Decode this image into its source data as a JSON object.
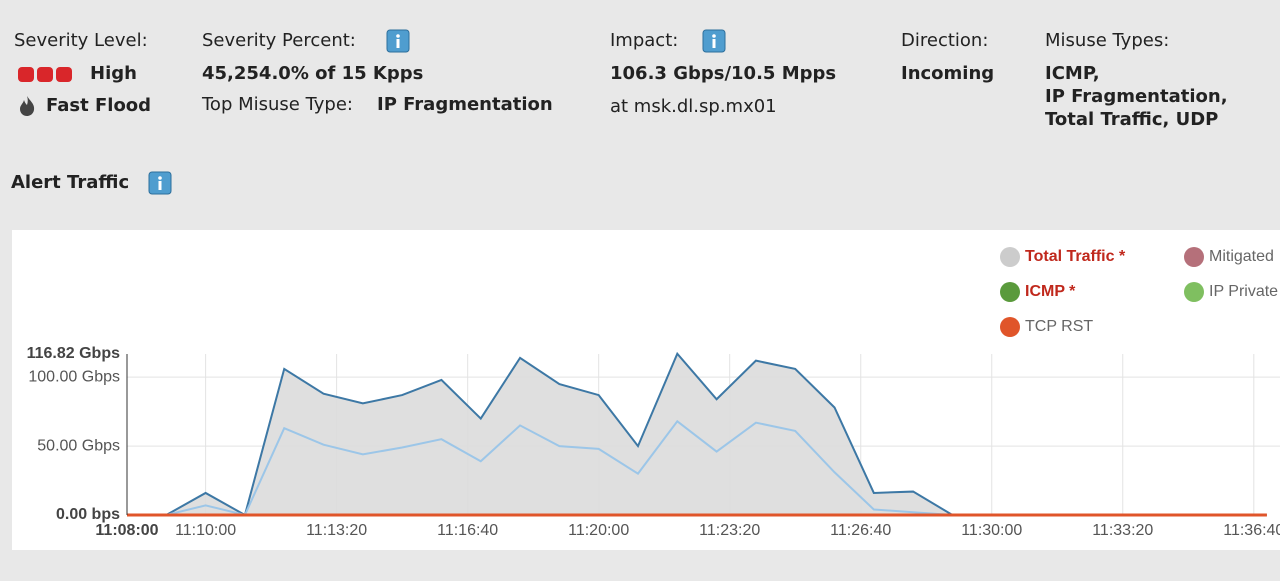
{
  "header": {
    "severity": {
      "label": "Severity Level:",
      "level": "High",
      "type": "Fast Flood"
    },
    "severity_percent": {
      "label": "Severity Percent:",
      "value": "45,254.0% of 15 Kpps",
      "top_misuse_label": "Top Misuse Type:",
      "top_misuse": "IP Fragmentation"
    },
    "impact": {
      "label": "Impact:",
      "value": "106.3 Gbps/10.5 Mpps",
      "location": "at msk.dl.sp.mx01"
    },
    "direction": {
      "label": "Direction:",
      "value": "Incoming"
    },
    "misuse_types": {
      "label": "Misuse Types:",
      "lines": [
        "ICMP,",
        "IP Fragmentation,",
        "Total Traffic, UDP"
      ]
    },
    "section_title": "Alert Traffic"
  },
  "chart_data": {
    "type": "area",
    "x": [
      "11:08:00",
      "11:09:00",
      "11:10:00",
      "11:11:00",
      "11:12:00",
      "11:13:00",
      "11:14:00",
      "11:15:00",
      "11:16:00",
      "11:17:00",
      "11:18:00",
      "11:19:00",
      "11:20:00",
      "11:21:00",
      "11:22:00",
      "11:23:00",
      "11:24:00",
      "11:25:00",
      "11:26:00",
      "11:27:00",
      "11:28:00",
      "11:29:00",
      "11:30:00",
      "11:31:00",
      "11:32:00",
      "11:33:00",
      "11:34:00",
      "11:35:00",
      "11:36:00",
      "11:37:00"
    ],
    "series": [
      {
        "name": "Total Traffic *",
        "color": "#cccccc",
        "line_color": "#3d78a5",
        "fill": "#dcdcdc",
        "label_color": "#c0281c",
        "values": [
          0,
          0,
          16,
          0,
          106,
          88,
          81,
          87,
          98,
          70,
          114,
          95,
          87,
          50,
          117,
          84,
          112,
          106,
          78,
          16,
          17,
          0,
          0,
          0,
          0,
          0,
          0,
          0,
          0,
          0
        ]
      },
      {
        "name": "ICMP *",
        "color": "#5a9a3c",
        "line_color": "#9cc6e8",
        "label_color": "#c0281c",
        "values": [
          0,
          0,
          7,
          0,
          63,
          51,
          44,
          49,
          55,
          39,
          65,
          50,
          48,
          30,
          68,
          46,
          67,
          61,
          31,
          4,
          2,
          0,
          0,
          0,
          0,
          0,
          0,
          0,
          0,
          0
        ]
      },
      {
        "name": "TCP RST",
        "color": "#e0552a",
        "line_color": "#e0552a",
        "values": [
          0,
          0,
          0,
          0,
          0,
          0,
          0,
          0,
          0,
          0,
          0,
          0,
          0,
          0,
          0,
          0,
          0,
          0,
          0,
          0,
          0,
          0,
          0,
          0,
          0,
          0,
          0,
          0,
          0,
          0
        ]
      }
    ],
    "legend_only": [
      {
        "name": "Mitigated",
        "color": "#b5707a"
      },
      {
        "name": "IP Private",
        "color": "#7fbf60"
      }
    ],
    "xlim": [
      "11:08:00",
      "11:37:20"
    ],
    "xticks": [
      "11:08:00",
      "11:10:00",
      "11:13:20",
      "11:16:40",
      "11:20:00",
      "11:23:20",
      "11:26:40",
      "11:30:00",
      "11:33:20",
      "11:36:40"
    ],
    "ylim": [
      0,
      116.82
    ],
    "yticks": [
      {
        "value": 0,
        "label": "0.00 bps"
      },
      {
        "value": 50,
        "label": "50.00 Gbps"
      },
      {
        "value": 100,
        "label": "100.00 Gbps"
      },
      {
        "value": 116.82,
        "label": "116.82 Gbps"
      }
    ],
    "grid": true
  }
}
